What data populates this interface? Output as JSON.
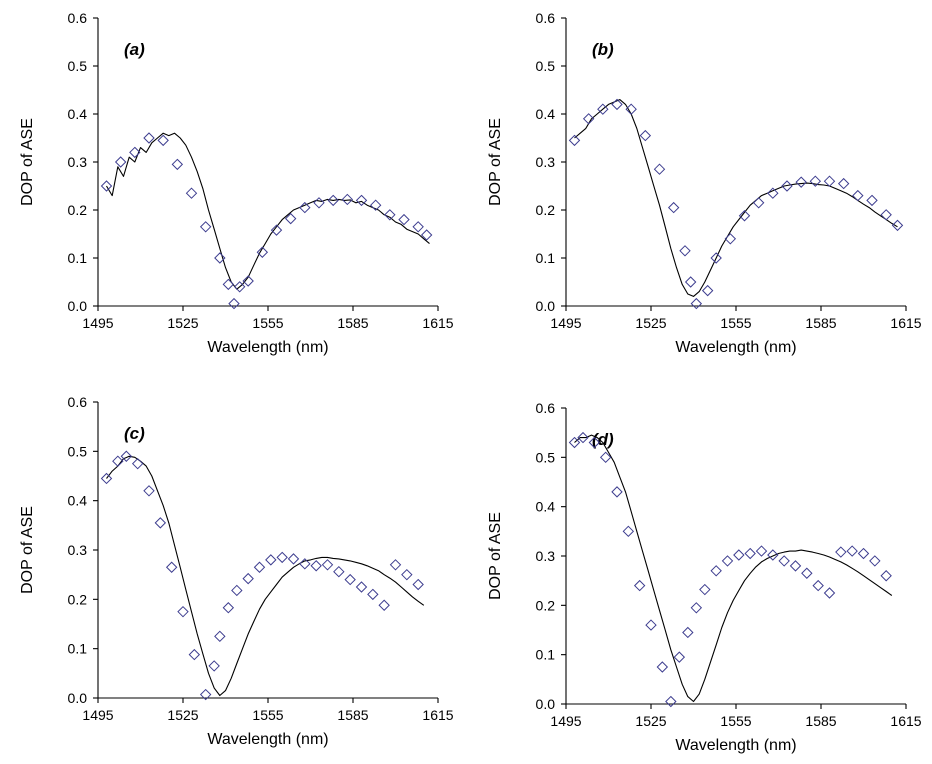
{
  "colors": {
    "line": "#000000",
    "marker": "#3d3d8f",
    "axis": "#000000",
    "background": "#ffffff"
  },
  "chart_data": [
    {
      "panel": "(a)",
      "type": "scatter",
      "xlabel": "Wavelength  (nm)",
      "ylabel": "DOP of ASE",
      "xlim": [
        1495,
        1615
      ],
      "ylim": [
        0,
        0.6
      ],
      "xticks": [
        "1495",
        "1525",
        "1555",
        "1585",
        "1615"
      ],
      "yticks": [
        "0.0",
        "0.1",
        "0.2",
        "0.3",
        "0.4",
        "0.5",
        "0.6"
      ],
      "grid": false,
      "measured": {
        "x": [
          1498,
          1500,
          1502,
          1504,
          1506,
          1508,
          1510,
          1512,
          1514,
          1516,
          1518,
          1520,
          1522,
          1524,
          1526,
          1528,
          1530,
          1532,
          1534,
          1536,
          1538,
          1540,
          1542,
          1544,
          1546,
          1548,
          1550,
          1552,
          1554,
          1556,
          1558,
          1560,
          1562,
          1564,
          1566,
          1568,
          1570,
          1572,
          1574,
          1576,
          1578,
          1580,
          1582,
          1584,
          1586,
          1588,
          1590,
          1592,
          1594,
          1596,
          1598,
          1600,
          1602,
          1604,
          1606,
          1608,
          1610,
          1612
        ],
        "y": [
          0.25,
          0.23,
          0.29,
          0.27,
          0.31,
          0.3,
          0.33,
          0.32,
          0.34,
          0.35,
          0.36,
          0.355,
          0.36,
          0.35,
          0.335,
          0.31,
          0.28,
          0.245,
          0.2,
          0.16,
          0.12,
          0.08,
          0.05,
          0.035,
          0.045,
          0.06,
          0.085,
          0.11,
          0.13,
          0.15,
          0.165,
          0.18,
          0.19,
          0.2,
          0.205,
          0.21,
          0.215,
          0.22,
          0.218,
          0.222,
          0.22,
          0.222,
          0.22,
          0.221,
          0.215,
          0.218,
          0.21,
          0.205,
          0.2,
          0.19,
          0.185,
          0.175,
          0.17,
          0.16,
          0.155,
          0.15,
          0.14,
          0.13
        ]
      },
      "markers": {
        "x": [
          1498,
          1503,
          1508,
          1513,
          1518,
          1523,
          1528,
          1533,
          1538,
          1541,
          1543,
          1545,
          1548,
          1553,
          1558,
          1563,
          1568,
          1573,
          1578,
          1583,
          1588,
          1593,
          1598,
          1603,
          1608,
          1611
        ],
        "y": [
          0.25,
          0.3,
          0.32,
          0.35,
          0.345,
          0.295,
          0.235,
          0.165,
          0.1,
          0.045,
          0.005,
          0.04,
          0.052,
          0.112,
          0.158,
          0.182,
          0.205,
          0.215,
          0.22,
          0.222,
          0.22,
          0.21,
          0.19,
          0.18,
          0.165,
          0.148
        ]
      }
    },
    {
      "panel": "(b)",
      "type": "scatter",
      "xlabel": "Wavelength  (nm)",
      "ylabel": "DOP of ASE",
      "xlim": [
        1495,
        1615
      ],
      "ylim": [
        0,
        0.6
      ],
      "xticks": [
        "1495",
        "1525",
        "1555",
        "1585",
        "1615"
      ],
      "yticks": [
        "0.0",
        "0.1",
        "0.2",
        "0.3",
        "0.4",
        "0.5",
        "0.6"
      ],
      "grid": false,
      "measured": {
        "x": [
          1498,
          1500,
          1502,
          1504,
          1506,
          1508,
          1510,
          1512,
          1514,
          1516,
          1518,
          1520,
          1522,
          1524,
          1526,
          1528,
          1530,
          1532,
          1534,
          1536,
          1538,
          1540,
          1542,
          1544,
          1546,
          1548,
          1550,
          1552,
          1554,
          1556,
          1558,
          1560,
          1562,
          1564,
          1566,
          1568,
          1570,
          1572,
          1574,
          1576,
          1578,
          1580,
          1582,
          1584,
          1586,
          1588,
          1590,
          1592,
          1594,
          1596,
          1598,
          1600,
          1602,
          1604,
          1606,
          1608,
          1610,
          1612
        ],
        "y": [
          0.35,
          0.36,
          0.37,
          0.39,
          0.4,
          0.41,
          0.42,
          0.425,
          0.43,
          0.42,
          0.4,
          0.37,
          0.33,
          0.29,
          0.25,
          0.21,
          0.165,
          0.12,
          0.08,
          0.045,
          0.025,
          0.02,
          0.03,
          0.05,
          0.075,
          0.1,
          0.125,
          0.145,
          0.165,
          0.18,
          0.195,
          0.21,
          0.22,
          0.23,
          0.235,
          0.24,
          0.245,
          0.25,
          0.252,
          0.254,
          0.255,
          0.256,
          0.255,
          0.253,
          0.252,
          0.25,
          0.245,
          0.24,
          0.235,
          0.228,
          0.22,
          0.212,
          0.205,
          0.196,
          0.188,
          0.18,
          0.172,
          0.165
        ]
      },
      "markers": {
        "x": [
          1498,
          1503,
          1508,
          1513,
          1518,
          1523,
          1528,
          1533,
          1537,
          1539,
          1541,
          1545,
          1548,
          1553,
          1558,
          1563,
          1568,
          1573,
          1578,
          1583,
          1588,
          1593,
          1598,
          1603,
          1608,
          1612
        ],
        "y": [
          0.345,
          0.39,
          0.41,
          0.42,
          0.41,
          0.355,
          0.285,
          0.205,
          0.115,
          0.05,
          0.005,
          0.032,
          0.1,
          0.14,
          0.188,
          0.215,
          0.235,
          0.25,
          0.258,
          0.26,
          0.26,
          0.255,
          0.23,
          0.22,
          0.19,
          0.168
        ]
      }
    },
    {
      "panel": "(c)",
      "type": "scatter",
      "xlabel": "Wavelength  (nm)",
      "ylabel": "DOP of ASE",
      "xlim": [
        1495,
        1615
      ],
      "ylim": [
        0,
        0.6
      ],
      "xticks": [
        "1495",
        "1525",
        "1555",
        "1585",
        "1615"
      ],
      "yticks": [
        "0.0",
        "0.1",
        "0.2",
        "0.3",
        "0.4",
        "0.5",
        "0.6"
      ],
      "grid": false,
      "measured": {
        "x": [
          1498,
          1500,
          1502,
          1504,
          1506,
          1508,
          1510,
          1512,
          1514,
          1516,
          1518,
          1520,
          1522,
          1524,
          1526,
          1528,
          1530,
          1532,
          1534,
          1536,
          1538,
          1540,
          1542,
          1544,
          1546,
          1548,
          1550,
          1552,
          1554,
          1556,
          1558,
          1560,
          1562,
          1564,
          1566,
          1568,
          1570,
          1572,
          1574,
          1576,
          1578,
          1580,
          1582,
          1584,
          1586,
          1588,
          1590,
          1592,
          1594,
          1596,
          1598,
          1600,
          1602,
          1604,
          1606,
          1608,
          1610
        ],
        "y": [
          0.445,
          0.46,
          0.47,
          0.485,
          0.49,
          0.488,
          0.48,
          0.47,
          0.45,
          0.42,
          0.39,
          0.355,
          0.31,
          0.265,
          0.22,
          0.175,
          0.13,
          0.09,
          0.05,
          0.02,
          0.005,
          0.015,
          0.04,
          0.07,
          0.1,
          0.13,
          0.155,
          0.18,
          0.2,
          0.215,
          0.23,
          0.245,
          0.255,
          0.265,
          0.272,
          0.278,
          0.28,
          0.283,
          0.285,
          0.285,
          0.283,
          0.282,
          0.28,
          0.278,
          0.275,
          0.272,
          0.268,
          0.263,
          0.258,
          0.25,
          0.243,
          0.235,
          0.225,
          0.215,
          0.205,
          0.196,
          0.188
        ]
      },
      "markers": {
        "x": [
          1498,
          1502,
          1505,
          1509,
          1513,
          1517,
          1521,
          1525,
          1529,
          1533,
          1536,
          1538,
          1541,
          1544,
          1548,
          1552,
          1556,
          1560,
          1564,
          1568,
          1572,
          1576,
          1580,
          1584,
          1588,
          1592,
          1596,
          1600,
          1604,
          1608
        ],
        "y": [
          0.445,
          0.48,
          0.49,
          0.475,
          0.42,
          0.355,
          0.265,
          0.175,
          0.088,
          0.007,
          0.065,
          0.125,
          0.183,
          0.218,
          0.242,
          0.265,
          0.28,
          0.285,
          0.282,
          0.272,
          0.268,
          0.27,
          0.256,
          0.24,
          0.225,
          0.21,
          0.188,
          0.27,
          0.25,
          0.23
        ]
      }
    },
    {
      "panel": "(d)",
      "type": "scatter",
      "xlabel": "Wavelength  (nm)",
      "ylabel": "DOP of ASE",
      "xlim": [
        1495,
        1615
      ],
      "ylim": [
        0,
        0.6
      ],
      "xticks": [
        "1495",
        "1525",
        "1555",
        "1585",
        "1615"
      ],
      "yticks": [
        "0.0",
        "0.1",
        "0.2",
        "0.3",
        "0.4",
        "0.5",
        "0.6"
      ],
      "grid": false,
      "measured": {
        "x": [
          1498,
          1500,
          1502,
          1504,
          1506,
          1508,
          1510,
          1512,
          1514,
          1516,
          1518,
          1520,
          1522,
          1524,
          1526,
          1528,
          1530,
          1532,
          1534,
          1536,
          1538,
          1540,
          1542,
          1544,
          1546,
          1548,
          1550,
          1552,
          1554,
          1556,
          1558,
          1560,
          1562,
          1564,
          1566,
          1568,
          1570,
          1572,
          1574,
          1576,
          1578,
          1580,
          1582,
          1584,
          1586,
          1588,
          1590,
          1592,
          1594,
          1596,
          1598,
          1600,
          1602,
          1604,
          1606,
          1608,
          1610
        ],
        "y": [
          0.53,
          0.54,
          0.54,
          0.545,
          0.54,
          0.53,
          0.51,
          0.49,
          0.46,
          0.43,
          0.39,
          0.35,
          0.31,
          0.27,
          0.23,
          0.19,
          0.15,
          0.11,
          0.075,
          0.04,
          0.015,
          0.005,
          0.02,
          0.05,
          0.085,
          0.12,
          0.155,
          0.185,
          0.21,
          0.23,
          0.25,
          0.265,
          0.278,
          0.288,
          0.295,
          0.3,
          0.305,
          0.308,
          0.31,
          0.31,
          0.312,
          0.31,
          0.308,
          0.305,
          0.302,
          0.298,
          0.293,
          0.288,
          0.282,
          0.275,
          0.268,
          0.26,
          0.252,
          0.244,
          0.236,
          0.228,
          0.22
        ]
      },
      "markers": {
        "x": [
          1498,
          1501,
          1505,
          1509,
          1513,
          1517,
          1521,
          1525,
          1529,
          1532,
          1535,
          1538,
          1541,
          1544,
          1548,
          1552,
          1556,
          1560,
          1564,
          1568,
          1572,
          1576,
          1580,
          1584,
          1588,
          1592,
          1596,
          1600,
          1604,
          1608
        ],
        "y": [
          0.53,
          0.54,
          0.53,
          0.5,
          0.43,
          0.35,
          0.24,
          0.16,
          0.075,
          0.005,
          0.095,
          0.145,
          0.195,
          0.232,
          0.27,
          0.29,
          0.302,
          0.305,
          0.31,
          0.302,
          0.29,
          0.28,
          0.265,
          0.24,
          0.225,
          0.308,
          0.31,
          0.305,
          0.29,
          0.26
        ]
      }
    }
  ]
}
